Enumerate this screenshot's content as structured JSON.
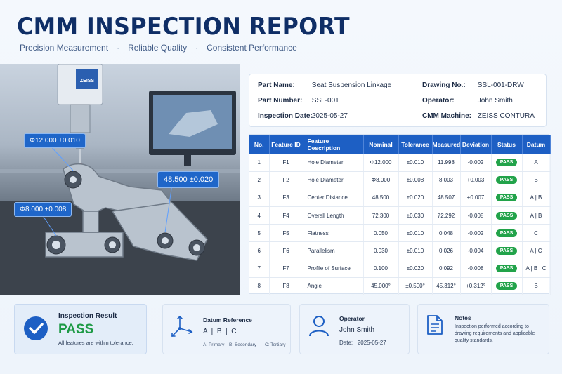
{
  "header": {
    "title": "CMM INSPECTION REPORT",
    "taglines": [
      "Precision Measurement",
      "Reliable Quality",
      "Consistent Performance"
    ]
  },
  "photo": {
    "brand": "ZEISS",
    "callouts": [
      "Φ12.000 ±0.010",
      "48.500 ±0.020",
      "Φ8.000 ±0.008"
    ]
  },
  "info": {
    "part_name_label": "Part Name:",
    "part_name": "Seat Suspension Linkage",
    "part_number_label": "Part Number:",
    "part_number": "SSL-001",
    "inspection_date_label": "Inspection Date:",
    "inspection_date": "2025-05-27",
    "drawing_no_label": "Drawing No.:",
    "drawing_no": "SSL-001-DRW",
    "operator_label": "Operator:",
    "operator": "John Smith",
    "cmm_label": "CMM Machine:",
    "cmm": "ZEISS CONTURA"
  },
  "table": {
    "headers": [
      "No.",
      "Feature ID",
      "Feature Description",
      "Nominal",
      "Tolerance",
      "Measured",
      "Deviation",
      "Status",
      "Datum"
    ],
    "rows": [
      [
        "1",
        "F1",
        "Hole Diameter",
        "Φ12.000",
        "±0.010",
        "11.998",
        "-0.002",
        "PASS",
        "A"
      ],
      [
        "2",
        "F2",
        "Hole Diameter",
        "Φ8.000",
        "±0.008",
        "8.003",
        "+0.003",
        "PASS",
        "B"
      ],
      [
        "3",
        "F3",
        "Center Distance",
        "48.500",
        "±0.020",
        "48.507",
        "+0.007",
        "PASS",
        "A | B"
      ],
      [
        "4",
        "F4",
        "Overall Length",
        "72.300",
        "±0.030",
        "72.292",
        "-0.008",
        "PASS",
        "A | B"
      ],
      [
        "5",
        "F5",
        "Flatness",
        "0.050",
        "±0.010",
        "0.048",
        "-0.002",
        "PASS",
        "C"
      ],
      [
        "6",
        "F6",
        "Parallelism",
        "0.030",
        "±0.010",
        "0.026",
        "-0.004",
        "PASS",
        "A | C"
      ],
      [
        "7",
        "F7",
        "Profile of Surface",
        "0.100",
        "±0.020",
        "0.092",
        "-0.008",
        "PASS",
        "A | B | C"
      ],
      [
        "8",
        "F8",
        "Angle",
        "45.000°",
        "±0.500°",
        "45.312°",
        "+0.312°",
        "PASS",
        "B"
      ]
    ]
  },
  "result": {
    "heading": "Inspection Result",
    "value": "PASS",
    "note": "All features are within tolerance."
  },
  "datum": {
    "heading": "Datum Reference",
    "letters": "A  |  B  |  C",
    "legend": [
      "A: Primary",
      "B: Secondary",
      "C: Tertiary"
    ]
  },
  "operator_card": {
    "heading": "Operator",
    "name": "John Smith",
    "date_label": "Date:",
    "date": "2025-05-27"
  },
  "notes": {
    "heading": "Notes",
    "lines": [
      "Inspection performed according to",
      "drawing requirements and applicable",
      "quality standards."
    ]
  },
  "colors": {
    "primary": "#1d5fc4",
    "title": "#0f2e66",
    "pass": "#22a34a",
    "pass_text": "#1e9a46"
  }
}
